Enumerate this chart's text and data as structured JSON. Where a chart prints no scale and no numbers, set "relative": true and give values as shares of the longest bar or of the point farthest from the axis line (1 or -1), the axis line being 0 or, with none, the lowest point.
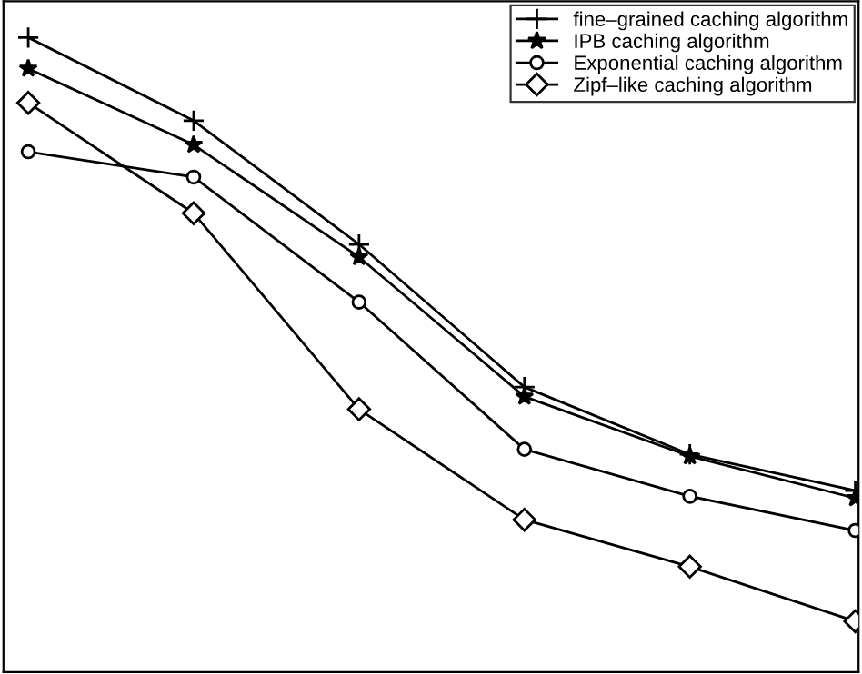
{
  "chart_data": {
    "type": "line",
    "relative": true,
    "legend": "top right",
    "grid": false,
    "categories": [
      null,
      null,
      null,
      null,
      null,
      null
    ],
    "series": [
      {
        "name": "fine–grained caching algorithm",
        "color": "#000000",
        "marker": "cross",
        "values": [
          1,
          0.869,
          0.674,
          0.449,
          0.343,
          0.286
        ]
      },
      {
        "name": "IPB caching algorithm",
        "color": "#000000",
        "marker": "star",
        "values": [
          0.951,
          0.831,
          0.654,
          0.434,
          0.34,
          0.274
        ]
      },
      {
        "name": "Exponential caching algorithm",
        "color": "#000000",
        "marker": "circle",
        "values": [
          0.82,
          0.78,
          0.583,
          0.351,
          0.277,
          0.223
        ]
      },
      {
        "name": "Zipf–like caching algorithm",
        "color": "#000000",
        "marker": "diamond",
        "values": [
          0.897,
          0.723,
          0.414,
          0.24,
          0.166,
          0.08
        ]
      }
    ]
  }
}
